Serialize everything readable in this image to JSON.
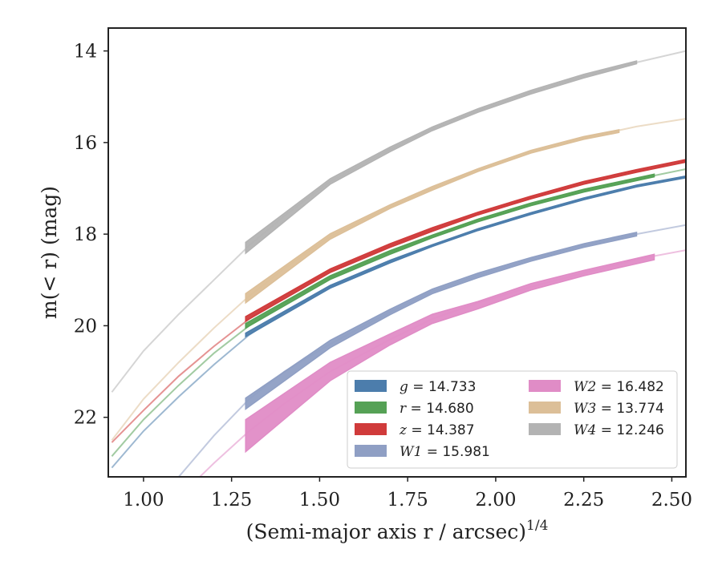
{
  "chart_data": {
    "type": "line",
    "xlabel": "(Semi-major axis r / arcsec)",
    "xlabel_sup": "1/4",
    "ylabel": "m(< r) (mag)",
    "xlim": [
      0.9,
      2.54
    ],
    "ylim": [
      23.3,
      13.5
    ],
    "y_inverted": true,
    "xticks": [
      "1.00",
      "1.25",
      "1.50",
      "1.75",
      "2.00",
      "2.25",
      "2.50"
    ],
    "yticks": [
      "14",
      "16",
      "18",
      "20",
      "22"
    ],
    "grid": false,
    "legend_placement": "lower-right",
    "legend_columns": 2,
    "series": [
      {
        "name": "g = 14.733",
        "legend_var": "g",
        "legend_val": "14.733",
        "color": "#4c7dac",
        "model_x": [
          0.91,
          1.0,
          1.1,
          1.2,
          1.3,
          1.4,
          1.53,
          1.7,
          1.82,
          1.95,
          2.1,
          2.25,
          2.4,
          2.54
        ],
        "model_y": [
          23.1,
          22.3,
          21.55,
          20.85,
          20.2,
          19.7,
          19.15,
          18.6,
          18.25,
          17.9,
          17.55,
          17.23,
          16.95,
          16.75
        ],
        "data_x": [
          1.29,
          1.53,
          1.7,
          1.82,
          1.95,
          2.1,
          2.25,
          2.4,
          2.54
        ],
        "data_y": [
          20.2,
          19.15,
          18.6,
          18.25,
          17.9,
          17.55,
          17.23,
          16.95,
          16.75
        ],
        "band": [
          0.04,
          0.03,
          0.03,
          0.02,
          0.02,
          0.02,
          0.02,
          0.02,
          0.02
        ]
      },
      {
        "name": "r = 14.680",
        "legend_var": "r",
        "legend_val": "14.680",
        "color": "#55a155",
        "model_x": [
          0.91,
          1.0,
          1.1,
          1.2,
          1.3,
          1.4,
          1.53,
          1.7,
          1.82,
          1.95,
          2.1,
          2.25,
          2.4,
          2.54
        ],
        "model_y": [
          22.85,
          22.05,
          21.3,
          20.6,
          20.0,
          19.5,
          18.95,
          18.4,
          18.05,
          17.7,
          17.35,
          17.05,
          16.8,
          16.58
        ],
        "data_x": [
          1.29,
          1.53,
          1.7,
          1.82,
          1.95,
          2.1,
          2.25,
          2.45
        ],
        "data_y": [
          20.0,
          18.95,
          18.4,
          18.05,
          17.7,
          17.35,
          17.05,
          16.72
        ],
        "band": [
          0.05,
          0.04,
          0.04,
          0.03,
          0.03,
          0.03,
          0.03,
          0.03
        ]
      },
      {
        "name": "z = 14.387",
        "legend_var": "z",
        "legend_val": "14.387",
        "color": "#d03b3b",
        "model_x": [
          0.91,
          1.0,
          1.1,
          1.2,
          1.3,
          1.4,
          1.53,
          1.7,
          1.82,
          1.95,
          2.1,
          2.25,
          2.4,
          2.54
        ],
        "model_y": [
          22.55,
          21.85,
          21.1,
          20.45,
          19.85,
          19.35,
          18.8,
          18.25,
          17.9,
          17.55,
          17.2,
          16.88,
          16.62,
          16.4
        ],
        "data_x": [
          1.29,
          1.53,
          1.7,
          1.82,
          1.95,
          2.1,
          2.25,
          2.4,
          2.54
        ],
        "data_y": [
          19.85,
          18.8,
          18.25,
          17.9,
          17.55,
          17.2,
          16.88,
          16.62,
          16.4
        ],
        "band": [
          0.05,
          0.04,
          0.04,
          0.04,
          0.03,
          0.03,
          0.03,
          0.03,
          0.03
        ]
      },
      {
        "name": "W1 = 15.981",
        "legend_var": "W1",
        "legend_val": "15.981",
        "color": "#8f9fc4",
        "model_x": [
          1.1,
          1.2,
          1.3,
          1.4,
          1.53,
          1.7,
          1.82,
          1.95,
          2.1,
          2.25,
          2.4,
          2.54
        ],
        "model_y": [
          23.3,
          22.4,
          21.6,
          21.0,
          20.4,
          19.7,
          19.25,
          18.9,
          18.55,
          18.25,
          18.0,
          17.8
        ],
        "data_x": [
          1.29,
          1.53,
          1.7,
          1.82,
          1.95,
          2.1,
          2.25,
          2.4
        ],
        "data_y": [
          21.7,
          20.4,
          19.7,
          19.25,
          18.9,
          18.55,
          18.25,
          18.0
        ],
        "band": [
          0.12,
          0.08,
          0.06,
          0.05,
          0.05,
          0.04,
          0.04,
          0.04
        ]
      },
      {
        "name": "W2 = 16.482",
        "legend_var": "W2",
        "legend_val": "16.482",
        "color": "#e08cc6",
        "model_x": [
          1.16,
          1.2,
          1.3,
          1.4,
          1.53,
          1.7,
          1.82,
          1.95,
          2.1,
          2.25,
          2.4,
          2.54
        ],
        "model_y": [
          23.3,
          23.0,
          22.3,
          21.7,
          21.0,
          20.3,
          19.85,
          19.5,
          19.15,
          18.85,
          18.55,
          18.35
        ],
        "data_x": [
          1.29,
          1.53,
          1.7,
          1.82,
          1.95,
          2.1,
          2.25,
          2.45
        ],
        "data_y": [
          22.4,
          21.0,
          20.3,
          19.85,
          19.55,
          19.15,
          18.85,
          18.5
        ],
        "band": [
          0.35,
          0.2,
          0.12,
          0.1,
          0.08,
          0.07,
          0.06,
          0.06
        ]
      },
      {
        "name": "W3 = 13.774",
        "legend_var": "W3",
        "legend_val": "13.774",
        "color": "#dcbf98",
        "model_x": [
          0.91,
          1.0,
          1.1,
          1.2,
          1.3,
          1.4,
          1.53,
          1.7,
          1.82,
          1.95,
          2.1,
          2.25,
          2.4,
          2.54
        ],
        "model_y": [
          22.5,
          21.6,
          20.8,
          20.05,
          19.35,
          18.75,
          18.05,
          17.4,
          17.0,
          16.6,
          16.2,
          15.9,
          15.65,
          15.48
        ],
        "data_x": [
          1.29,
          1.53,
          1.7,
          1.82,
          1.95,
          2.1,
          2.25,
          2.35
        ],
        "data_y": [
          19.4,
          18.05,
          17.4,
          17.0,
          16.6,
          16.2,
          15.9,
          15.75
        ],
        "band": [
          0.1,
          0.06,
          0.04,
          0.04,
          0.03,
          0.03,
          0.03,
          0.03
        ]
      },
      {
        "name": "W4 = 12.246",
        "legend_var": "W4",
        "legend_val": "12.246",
        "color": "#b3b3b3",
        "model_x": [
          0.91,
          1.0,
          1.1,
          1.2,
          1.3,
          1.4,
          1.53,
          1.7,
          1.82,
          1.95,
          2.1,
          2.25,
          2.4,
          2.54
        ],
        "model_y": [
          21.45,
          20.55,
          19.75,
          19.0,
          18.25,
          17.6,
          16.85,
          16.15,
          15.7,
          15.3,
          14.9,
          14.55,
          14.25,
          14.0
        ],
        "data_x": [
          1.29,
          1.53,
          1.7,
          1.82,
          1.95,
          2.1,
          2.25,
          2.4
        ],
        "data_y": [
          18.3,
          16.85,
          16.15,
          15.7,
          15.3,
          14.9,
          14.55,
          14.25
        ],
        "band": [
          0.12,
          0.06,
          0.05,
          0.04,
          0.04,
          0.04,
          0.04,
          0.03
        ]
      }
    ]
  }
}
